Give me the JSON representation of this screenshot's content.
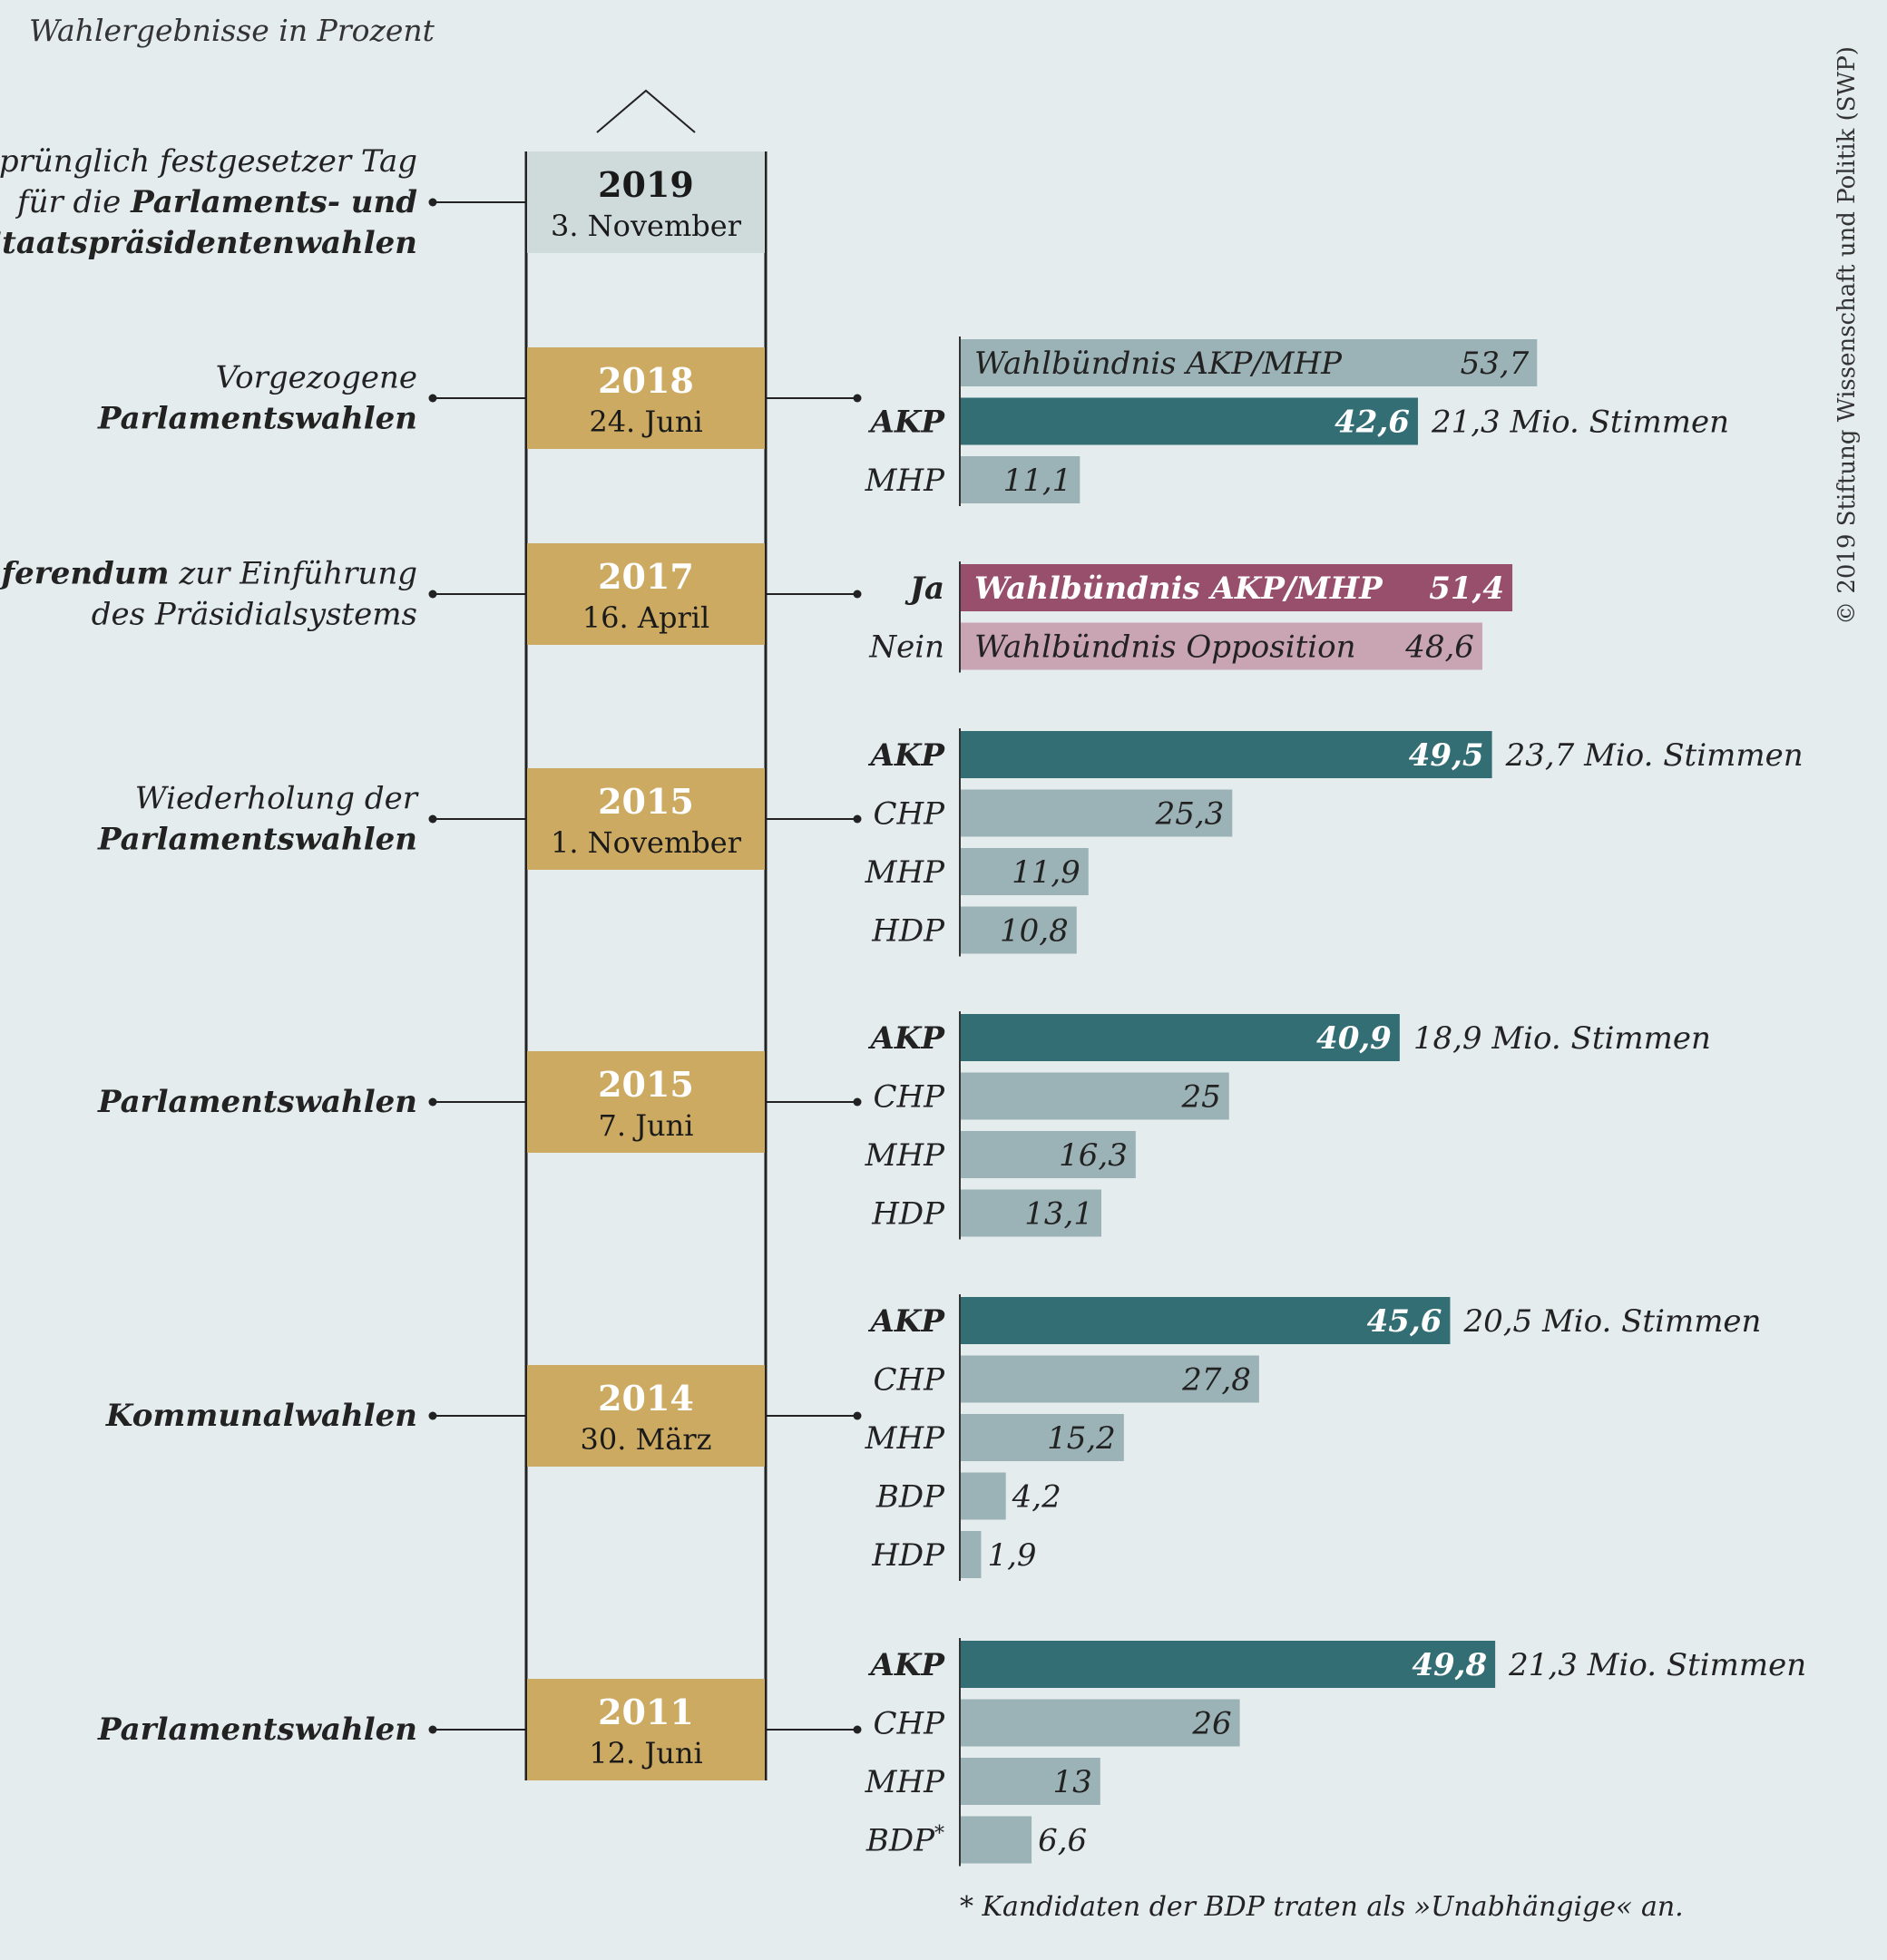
{
  "header": {
    "subtitle": "Wahlergebnisse in Prozent",
    "copyright": "© 2019 Stiftung Wissenschaft und Politik (SWP)",
    "footnote": "* Kandidaten der BDP traten als »Unabhängige« an."
  },
  "colors": {
    "background": "#e4ecee",
    "date_box": "#cdaa62",
    "date_box_first": "#cfdbdb",
    "bar_highlight": "#326e74",
    "bar_default": "#9bb2b6",
    "bar_yes": "#974f6c",
    "bar_no": "#c9a4b2",
    "timeline": "#222222"
  },
  "chart_data": {
    "type": "bar",
    "title": "Wahlergebnisse in Prozent",
    "unit": "Prozent",
    "events": [
      {
        "year": "2019",
        "date": "3. November",
        "label": [
          [
            {
              "t": "Ursprünglich festgesetzer Tag",
              "b": false
            }
          ],
          [
            {
              "t": "für die ",
              "b": false
            },
            {
              "t": "Parlaments- und",
              "b": true
            }
          ],
          [
            {
              "t": "Staatspräsidentenwahlen",
              "b": true
            }
          ]
        ],
        "bars": []
      },
      {
        "year": "2018",
        "date": "24. Juni",
        "label": [
          [
            {
              "t": "Vorgezogene",
              "b": false
            }
          ],
          [
            {
              "t": "Parlamentswahlen",
              "b": true
            }
          ]
        ],
        "bars": [
          {
            "party": "",
            "value": 53.7,
            "display": "53,7",
            "inner_label": "Wahlbündnis AKP/MHP",
            "style": "default"
          },
          {
            "party": "AKP",
            "value": 42.6,
            "display": "42,6",
            "votes": "21,3 Mio. Stimmen",
            "style": "highlight"
          },
          {
            "party": "MHP",
            "value": 11.1,
            "display": "11,1",
            "style": "default"
          }
        ]
      },
      {
        "year": "2017",
        "date": "16. April",
        "label": [
          [
            {
              "t": "Referendum",
              "b": true
            },
            {
              "t": " zur Einführung",
              "b": false
            }
          ],
          [
            {
              "t": "des Präsidialsystems",
              "b": false
            }
          ]
        ],
        "bars": [
          {
            "party": "Ja",
            "value": 51.4,
            "display": "51,4",
            "inner_label": "Wahlbündnis AKP/MHP",
            "style": "yes"
          },
          {
            "party": "Nein",
            "value": 48.6,
            "display": "48,6",
            "inner_label": "Wahlbündnis Opposition",
            "style": "no"
          }
        ]
      },
      {
        "year": "2015",
        "date": "1. November",
        "label": [
          [
            {
              "t": "Wiederholung der",
              "b": false
            }
          ],
          [
            {
              "t": "Parlamentswahlen",
              "b": true
            }
          ]
        ],
        "bars": [
          {
            "party": "AKP",
            "value": 49.5,
            "display": "49,5",
            "votes": "23,7 Mio. Stimmen",
            "style": "highlight"
          },
          {
            "party": "CHP",
            "value": 25.3,
            "display": "25,3",
            "style": "default"
          },
          {
            "party": "MHP",
            "value": 11.9,
            "display": "11,9",
            "style": "default"
          },
          {
            "party": "HDP",
            "value": 10.8,
            "display": "10,8",
            "style": "default"
          }
        ]
      },
      {
        "year": "2015",
        "date": "7. Juni",
        "label": [
          [
            {
              "t": "Parlamentswahlen",
              "b": true
            }
          ]
        ],
        "bars": [
          {
            "party": "AKP",
            "value": 40.9,
            "display": "40,9",
            "votes": "18,9 Mio. Stimmen",
            "style": "highlight"
          },
          {
            "party": "CHP",
            "value": 25,
            "display": "25",
            "style": "default"
          },
          {
            "party": "MHP",
            "value": 16.3,
            "display": "16,3",
            "style": "default"
          },
          {
            "party": "HDP",
            "value": 13.1,
            "display": "13,1",
            "style": "default"
          }
        ]
      },
      {
        "year": "2014",
        "date": "30. März",
        "label": [
          [
            {
              "t": "Kommunalwahlen",
              "b": true
            }
          ]
        ],
        "bars": [
          {
            "party": "AKP",
            "value": 45.6,
            "display": "45,6",
            "votes": "20,5 Mio. Stimmen",
            "style": "highlight"
          },
          {
            "party": "CHP",
            "value": 27.8,
            "display": "27,8",
            "style": "default"
          },
          {
            "party": "MHP",
            "value": 15.2,
            "display": "15,2",
            "style": "default"
          },
          {
            "party": "BDP",
            "value": 4.2,
            "display": "4,2",
            "style": "default"
          },
          {
            "party": "HDP",
            "value": 1.9,
            "display": "1,9",
            "style": "default"
          }
        ]
      },
      {
        "year": "2011",
        "date": "12. Juni",
        "label": [
          [
            {
              "t": "Parlamentswahlen",
              "b": true
            }
          ]
        ],
        "bars": [
          {
            "party": "AKP",
            "value": 49.8,
            "display": "49,8",
            "votes": "21,3 Mio. Stimmen",
            "style": "highlight"
          },
          {
            "party": "CHP",
            "value": 26,
            "display": "26",
            "style": "default"
          },
          {
            "party": "MHP",
            "value": 13,
            "display": "13",
            "style": "default"
          },
          {
            "party": "BDP",
            "value": 6.6,
            "display": "6,6",
            "style": "default",
            "footnote_mark": "*"
          }
        ]
      }
    ]
  }
}
